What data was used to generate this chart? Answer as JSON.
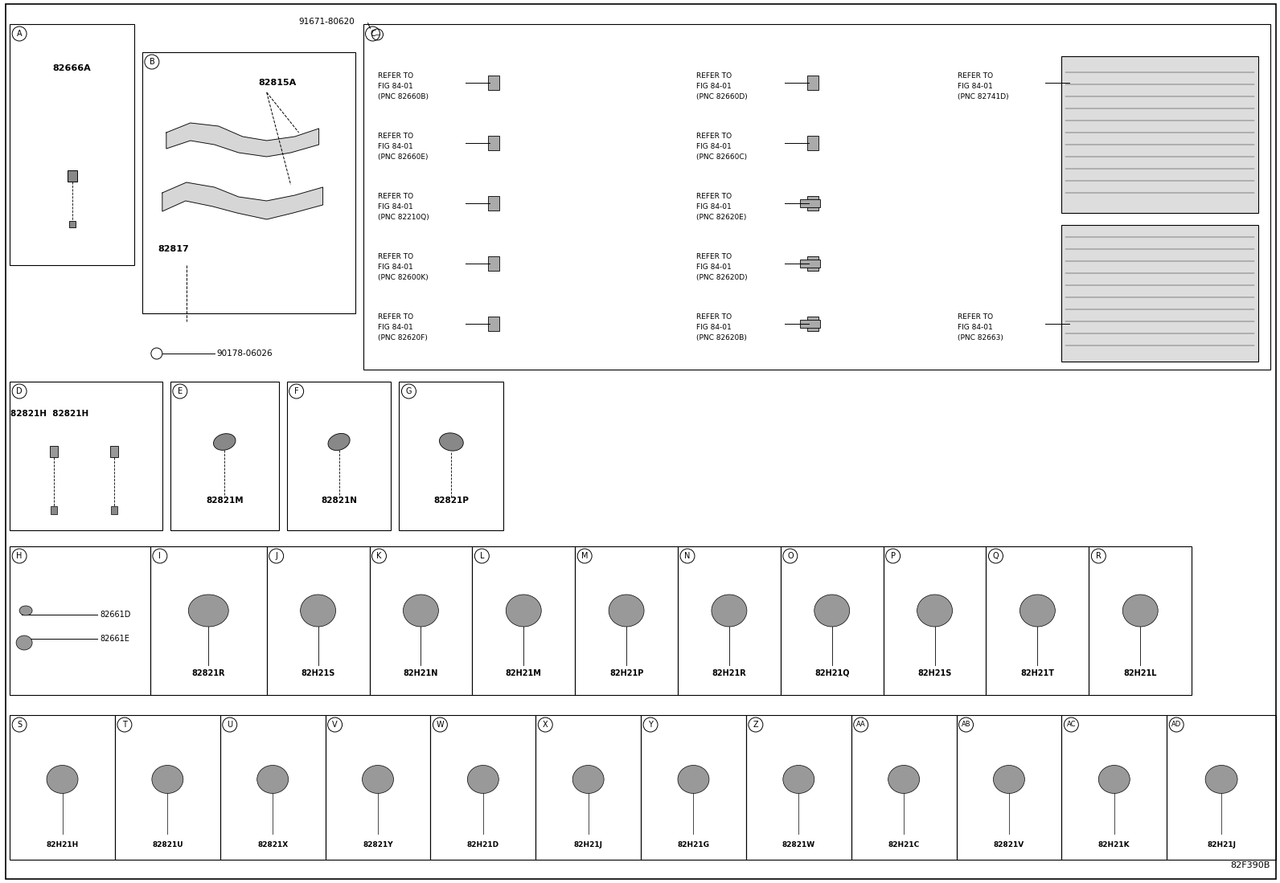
{
  "bg_color": "#ffffff",
  "footer": "82F390B",
  "part_91671": "91671-80620",
  "part_90178": "90178-06026",
  "label_A": "82666A",
  "label_82815A": "82815A",
  "label_82817": "82817",
  "ref_items": [
    {
      "text": "REFER TO\nFIG 84-01\n(PNC 82660B)",
      "col": 0,
      "row": 0,
      "has_img": true
    },
    {
      "text": "REFER TO\nFIG 84-01\n(PNC 82660D)",
      "col": 1,
      "row": 0,
      "has_img": true
    },
    {
      "text": "REFER TO\nFIG 84-01\n(PNC 82741D)",
      "col": 2,
      "row": 0,
      "has_img": true
    },
    {
      "text": "REFER TO\nFIG 84-01\n(PNC 82660E)",
      "col": 0,
      "row": 1,
      "has_img": true
    },
    {
      "text": "REFER TO\nFIG 84-01\n(PNC 82660C)",
      "col": 1,
      "row": 1,
      "has_img": true
    },
    {
      "text": "REFER TO\nFIG 84-01\n(PNC 82210Q)",
      "col": 0,
      "row": 2,
      "has_img": true
    },
    {
      "text": "REFER TO\nFIG 84-01\n(PNC 82620E)",
      "col": 1,
      "row": 2,
      "has_img": true
    },
    {
      "text": "REFER TO\nFIG 84-01\n(PNC 82600K)",
      "col": 0,
      "row": 3,
      "has_img": true
    },
    {
      "text": "REFER TO\nFIG 84-01\n(PNC 82620D)",
      "col": 1,
      "row": 3,
      "has_img": true
    },
    {
      "text": "REFER TO\nFIG 84-01\n(PNC 82620F)",
      "col": 0,
      "row": 4,
      "has_img": true
    },
    {
      "text": "REFER TO\nFIG 84-01\n(PNC 82620B)",
      "col": 1,
      "row": 4,
      "has_img": true
    },
    {
      "text": "REFER TO\nFIG 84-01\n(PNC 82663)",
      "col": 2,
      "row": 4,
      "has_img": false
    }
  ],
  "row2_items": [
    {
      "id": "D",
      "label": "82821H 82821H",
      "two_parts": true
    },
    {
      "id": "E",
      "label": "82821M",
      "two_parts": false
    },
    {
      "id": "F",
      "label": "82821N",
      "two_parts": false
    },
    {
      "id": "G",
      "label": "82821P",
      "two_parts": false
    }
  ],
  "row3_items": [
    {
      "id": "H",
      "label": "82661D\n82661E",
      "two": true
    },
    {
      "id": "I",
      "label": "82821R",
      "two": false
    },
    {
      "id": "J",
      "label": "82H21S",
      "two": false
    },
    {
      "id": "K",
      "label": "82H21N",
      "two": false
    },
    {
      "id": "L",
      "label": "82H21M",
      "two": false
    },
    {
      "id": "M",
      "label": "82H21P",
      "two": false
    },
    {
      "id": "N",
      "label": "82H21R",
      "two": false
    },
    {
      "id": "O",
      "label": "82H21Q",
      "two": false
    },
    {
      "id": "P",
      "label": "82H21S",
      "two": false
    },
    {
      "id": "Q",
      "label": "82H21T",
      "two": false
    },
    {
      "id": "R",
      "label": "82H21L",
      "two": false
    }
  ],
  "row4_items": [
    {
      "id": "S",
      "label": "82H21H"
    },
    {
      "id": "T",
      "label": "82821U"
    },
    {
      "id": "U",
      "label": "82821X"
    },
    {
      "id": "V",
      "label": "82821Y"
    },
    {
      "id": "W",
      "label": "82H21D"
    },
    {
      "id": "X",
      "label": "82H21J"
    },
    {
      "id": "Y",
      "label": "82H21G"
    },
    {
      "id": "Z",
      "label": "82821W"
    },
    {
      "id": "AA",
      "label": "82H21C"
    },
    {
      "id": "AB",
      "label": "82821V"
    },
    {
      "id": "AC",
      "label": "82H21K"
    },
    {
      "id": "AD",
      "label": "82H21J"
    }
  ]
}
